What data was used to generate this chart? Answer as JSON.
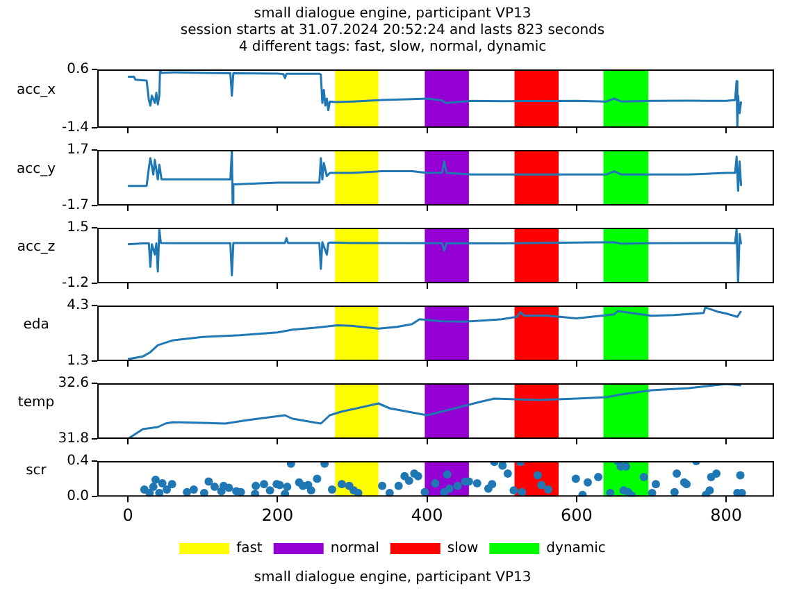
{
  "chart_data": [
    {
      "type": "line",
      "title": "small dialogue engine, participant VP13",
      "subtitle": "session starts at 31.07.2024 20:52:24 and lasts 823 seconds\n4 different tags: fast, slow, normal, dynamic",
      "ylabel": "acc_x",
      "xlim": [
        -41,
        864
      ],
      "xticks": [
        0,
        200,
        400,
        600,
        800
      ],
      "ylim": [
        -1.4,
        0.6
      ],
      "yticks": [
        -1.4,
        0.6
      ],
      "tick_labels": "y",
      "bands": [
        {
          "axis": "x",
          "from": 277,
          "to": 335,
          "color": "#ffff00"
        },
        {
          "axis": "x",
          "from": 397,
          "to": 456,
          "color": "#9400d3"
        },
        {
          "axis": "x",
          "from": 517,
          "to": 576,
          "color": "#ff0000"
        },
        {
          "axis": "x",
          "from": 636,
          "to": 696,
          "color": "#00ff00"
        }
      ],
      "series": [
        {
          "color": "#1f77b4",
          "x": [
            0,
            8,
            10,
            25,
            28,
            30,
            32,
            36,
            38,
            40,
            42,
            43,
            45,
            60,
            100,
            137,
            139,
            141,
            200,
            208,
            210,
            212,
            256,
            258,
            260,
            262,
            264,
            266,
            268,
            270,
            277,
            300,
            340,
            380,
            400,
            420,
            425,
            460,
            500,
            600,
            640,
            650,
            660,
            700,
            750,
            800,
            812,
            814,
            815,
            816,
            818,
            820
          ],
          "values": [
            0.35,
            0.35,
            0.25,
            0.22,
            -0.45,
            -0.64,
            -0.3,
            -0.55,
            -0.2,
            -0.6,
            -0.3,
            0.6,
            0.48,
            0.5,
            0.48,
            0.47,
            -0.3,
            0.47,
            0.46,
            0.44,
            0.3,
            0.45,
            0.45,
            0.42,
            -0.55,
            -0.1,
            -0.64,
            -0.4,
            -0.8,
            -0.5,
            -0.52,
            -0.5,
            -0.45,
            -0.42,
            -0.4,
            -0.46,
            -0.55,
            -0.48,
            -0.49,
            -0.48,
            -0.5,
            -0.4,
            -0.5,
            -0.48,
            -0.47,
            -0.48,
            -0.45,
            0.2,
            -1.4,
            -0.3,
            -0.9,
            -0.5
          ]
        }
      ]
    },
    {
      "type": "line",
      "ylabel": "acc_y",
      "xlim": [
        -41,
        864
      ],
      "xticks": [
        0,
        200,
        400,
        600,
        800
      ],
      "ylim": [
        -1.7,
        1.7
      ],
      "yticks": [
        -1.7,
        1.7
      ],
      "tick_labels": "y",
      "bands": [
        {
          "axis": "x",
          "from": 277,
          "to": 335,
          "color": "#ffff00"
        },
        {
          "axis": "x",
          "from": 397,
          "to": 456,
          "color": "#9400d3"
        },
        {
          "axis": "x",
          "from": 517,
          "to": 576,
          "color": "#ff0000"
        },
        {
          "axis": "x",
          "from": 636,
          "to": 696,
          "color": "#00ff00"
        }
      ],
      "series": [
        {
          "color": "#1f77b4",
          "x": [
            0,
            10,
            25,
            28,
            30,
            34,
            36,
            40,
            42,
            45,
            60,
            100,
            137,
            139,
            140,
            141,
            143,
            200,
            256,
            258,
            260,
            262,
            266,
            270,
            277,
            300,
            340,
            380,
            400,
            420,
            423,
            426,
            460,
            500,
            600,
            640,
            650,
            660,
            700,
            750,
            800,
            812,
            814,
            816,
            818,
            820
          ],
          "values": [
            -0.5,
            -0.5,
            -0.5,
            0.6,
            1.2,
            0.2,
            1.1,
            -0.1,
            0.8,
            -0.1,
            -0.1,
            -0.1,
            -0.1,
            1.7,
            -1.6,
            -0.4,
            -0.4,
            -0.3,
            -0.3,
            1.2,
            -0.1,
            0.9,
            0.1,
            0.3,
            0.3,
            0.3,
            0.4,
            0.4,
            0.3,
            0.3,
            1.0,
            0.3,
            0.2,
            0.2,
            0.2,
            0.2,
            0.4,
            0.2,
            0.2,
            0.2,
            0.3,
            0.3,
            1.3,
            -0.8,
            1.0,
            -0.5
          ]
        }
      ]
    },
    {
      "type": "line",
      "ylabel": "acc_z",
      "xlim": [
        -41,
        864
      ],
      "xticks": [
        0,
        200,
        400,
        600,
        800
      ],
      "ylim": [
        -1.2,
        1.5
      ],
      "yticks": [
        -1.2,
        1.5
      ],
      "tick_labels": "y",
      "bands": [
        {
          "axis": "x",
          "from": 277,
          "to": 335,
          "color": "#ffff00"
        },
        {
          "axis": "x",
          "from": 397,
          "to": 456,
          "color": "#9400d3"
        },
        {
          "axis": "x",
          "from": 517,
          "to": 576,
          "color": "#ff0000"
        },
        {
          "axis": "x",
          "from": 636,
          "to": 696,
          "color": "#00ff00"
        }
      ],
      "series": [
        {
          "color": "#1f77b4",
          "x": [
            0,
            20,
            28,
            30,
            32,
            36,
            38,
            40,
            42,
            44,
            60,
            137,
            139,
            141,
            210,
            212,
            214,
            256,
            258,
            260,
            266,
            268,
            270,
            300,
            420,
            423,
            426,
            500,
            650,
            660,
            700,
            800,
            812,
            814,
            816,
            818,
            820
          ],
          "values": [
            0.7,
            0.74,
            0.74,
            -0.4,
            0.7,
            0.2,
            0.74,
            -0.63,
            1.43,
            0.76,
            0.75,
            0.75,
            -0.81,
            0.76,
            0.76,
            1.0,
            0.76,
            0.76,
            -0.5,
            0.8,
            0.19,
            0.75,
            0.78,
            0.76,
            0.75,
            0.4,
            0.75,
            0.74,
            0.8,
            0.72,
            0.75,
            0.76,
            0.75,
            1.43,
            -1.2,
            1.2,
            0.7
          ]
        }
      ]
    },
    {
      "type": "line",
      "ylabel": "eda",
      "xlim": [
        -41,
        864
      ],
      "xticks": [
        0,
        200,
        400,
        600,
        800
      ],
      "ylim": [
        1.3,
        4.3
      ],
      "yticks": [
        1.3,
        4.3
      ],
      "tick_labels": "y",
      "bands": [
        {
          "axis": "x",
          "from": 277,
          "to": 335,
          "color": "#ffff00"
        },
        {
          "axis": "x",
          "from": 397,
          "to": 456,
          "color": "#9400d3"
        },
        {
          "axis": "x",
          "from": 517,
          "to": 576,
          "color": "#ff0000"
        },
        {
          "axis": "x",
          "from": 636,
          "to": 696,
          "color": "#00ff00"
        }
      ],
      "series": [
        {
          "color": "#1f77b4",
          "x": [
            0,
            20,
            30,
            40,
            60,
            100,
            150,
            200,
            220,
            250,
            280,
            300,
            335,
            360,
            380,
            390,
            420,
            450,
            480,
            500,
            520,
            525,
            530,
            560,
            600,
            650,
            655,
            700,
            730,
            770,
            772,
            790,
            800,
            815,
            820
          ],
          "values": [
            1.4,
            1.55,
            1.78,
            2.16,
            2.42,
            2.6,
            2.7,
            2.85,
            3.0,
            3.1,
            3.23,
            3.2,
            3.05,
            3.15,
            3.3,
            3.56,
            3.45,
            3.43,
            3.5,
            3.56,
            3.69,
            3.94,
            3.75,
            3.76,
            3.61,
            3.82,
            4.0,
            3.75,
            3.78,
            3.9,
            4.2,
            3.95,
            3.87,
            3.69,
            4.0
          ]
        }
      ]
    },
    {
      "type": "line",
      "ylabel": "temp",
      "xlim": [
        -41,
        864
      ],
      "xticks": [
        0,
        200,
        400,
        600,
        800
      ],
      "ylim": [
        31.8,
        32.6
      ],
      "yticks": [
        31.8,
        32.6
      ],
      "tick_labels": "y",
      "bands": [
        {
          "axis": "x",
          "from": 277,
          "to": 335,
          "color": "#ffff00"
        },
        {
          "axis": "x",
          "from": 397,
          "to": 456,
          "color": "#9400d3"
        },
        {
          "axis": "x",
          "from": 517,
          "to": 576,
          "color": "#ff0000"
        },
        {
          "axis": "x",
          "from": 636,
          "to": 696,
          "color": "#00ff00"
        }
      ],
      "series": [
        {
          "color": "#1f77b4",
          "x": [
            0,
            10,
            20,
            40,
            50,
            60,
            100,
            130,
            160,
            210,
            220,
            258,
            270,
            285,
            335,
            350,
            400,
            430,
            470,
            490,
            550,
            600,
            640,
            660,
            700,
            750,
            800,
            820
          ],
          "values": [
            31.8,
            31.87,
            31.94,
            31.97,
            32.02,
            32.04,
            32.03,
            32.02,
            32.07,
            32.14,
            32.09,
            32.02,
            32.14,
            32.19,
            32.31,
            32.24,
            32.14,
            32.22,
            32.33,
            32.38,
            32.36,
            32.38,
            32.4,
            32.44,
            32.5,
            32.53,
            32.59,
            32.57
          ]
        }
      ]
    },
    {
      "type": "scatter",
      "ylabel": "scr",
      "xlabel": "small dialogue engine, participant VP13",
      "xlim": [
        -41,
        864
      ],
      "xticks": [
        0,
        200,
        400,
        600,
        800
      ],
      "ylim": [
        0,
        0.4
      ],
      "yticks": [
        {
          "value": 0,
          "label": "0.0"
        },
        0.4
      ],
      "marker": "circle",
      "legend": "bottom",
      "bands": [
        {
          "axis": "x",
          "from": 277,
          "to": 335,
          "color": "#ffff00",
          "label": "fast"
        },
        {
          "axis": "x",
          "from": 397,
          "to": 456,
          "color": "#9400d3",
          "label": "normal"
        },
        {
          "axis": "x",
          "from": 517,
          "to": 576,
          "color": "#ff0000",
          "label": "slow"
        },
        {
          "axis": "x",
          "from": 636,
          "to": 696,
          "color": "#00ff00",
          "label": "dynamic"
        }
      ],
      "series": [
        {
          "color": "#1f77b4",
          "x": [
            22,
            29,
            34,
            37,
            42,
            46,
            52,
            59,
            79,
            88,
            102,
            108,
            116,
            125,
            128,
            135,
            145,
            151,
            170,
            171,
            182,
            190,
            199,
            203,
            210,
            213,
            218,
            229,
            234,
            241,
            245,
            253,
            263,
            273,
            286,
            296,
            302,
            308,
            340,
            350,
            362,
            370,
            376,
            383,
            388,
            397,
            411,
            423,
            427,
            430,
            441,
            451,
            456,
            467,
            482,
            487,
            490,
            501,
            508,
            516,
            525,
            527,
            548,
            553,
            562,
            599,
            608,
            615,
            629,
            645,
            655,
            659,
            666,
            663,
            669,
            674,
            690,
            701,
            706,
            731,
            734,
            744,
            747,
            760,
            773,
            778,
            780,
            787,
            815,
            819,
            821
          ],
          "values": [
            0.08,
            0.04,
            0.11,
            0.19,
            0.04,
            0.15,
            0.08,
            0.14,
            0.05,
            0.08,
            0.04,
            0.17,
            0.11,
            0.06,
            0.12,
            0.1,
            0.06,
            0.05,
            0.03,
            0.12,
            0.14,
            0.07,
            0.14,
            0.13,
            0.03,
            0.11,
            0.37,
            0.16,
            0.12,
            0.13,
            0.07,
            0.2,
            0.37,
            0.08,
            0.14,
            0.12,
            0.07,
            0.04,
            0.12,
            0.04,
            0.12,
            0.23,
            0.18,
            0.26,
            0.23,
            0.05,
            0.15,
            0.05,
            0.25,
            0.09,
            0.12,
            0.17,
            0.17,
            0.15,
            0.09,
            0.14,
            0.39,
            0.35,
            0.26,
            0.07,
            0.39,
            0.05,
            0.24,
            0.13,
            0.08,
            0.2,
            0.02,
            0.16,
            0.22,
            0.04,
            0.4,
            0.34,
            0.34,
            0.07,
            0.05,
            0.01,
            0.22,
            0.04,
            0.14,
            0.05,
            0.26,
            0.16,
            0.14,
            0.4,
            0.02,
            0.07,
            0.22,
            0.26,
            0.04,
            0.24,
            0.04
          ]
        }
      ]
    }
  ]
}
